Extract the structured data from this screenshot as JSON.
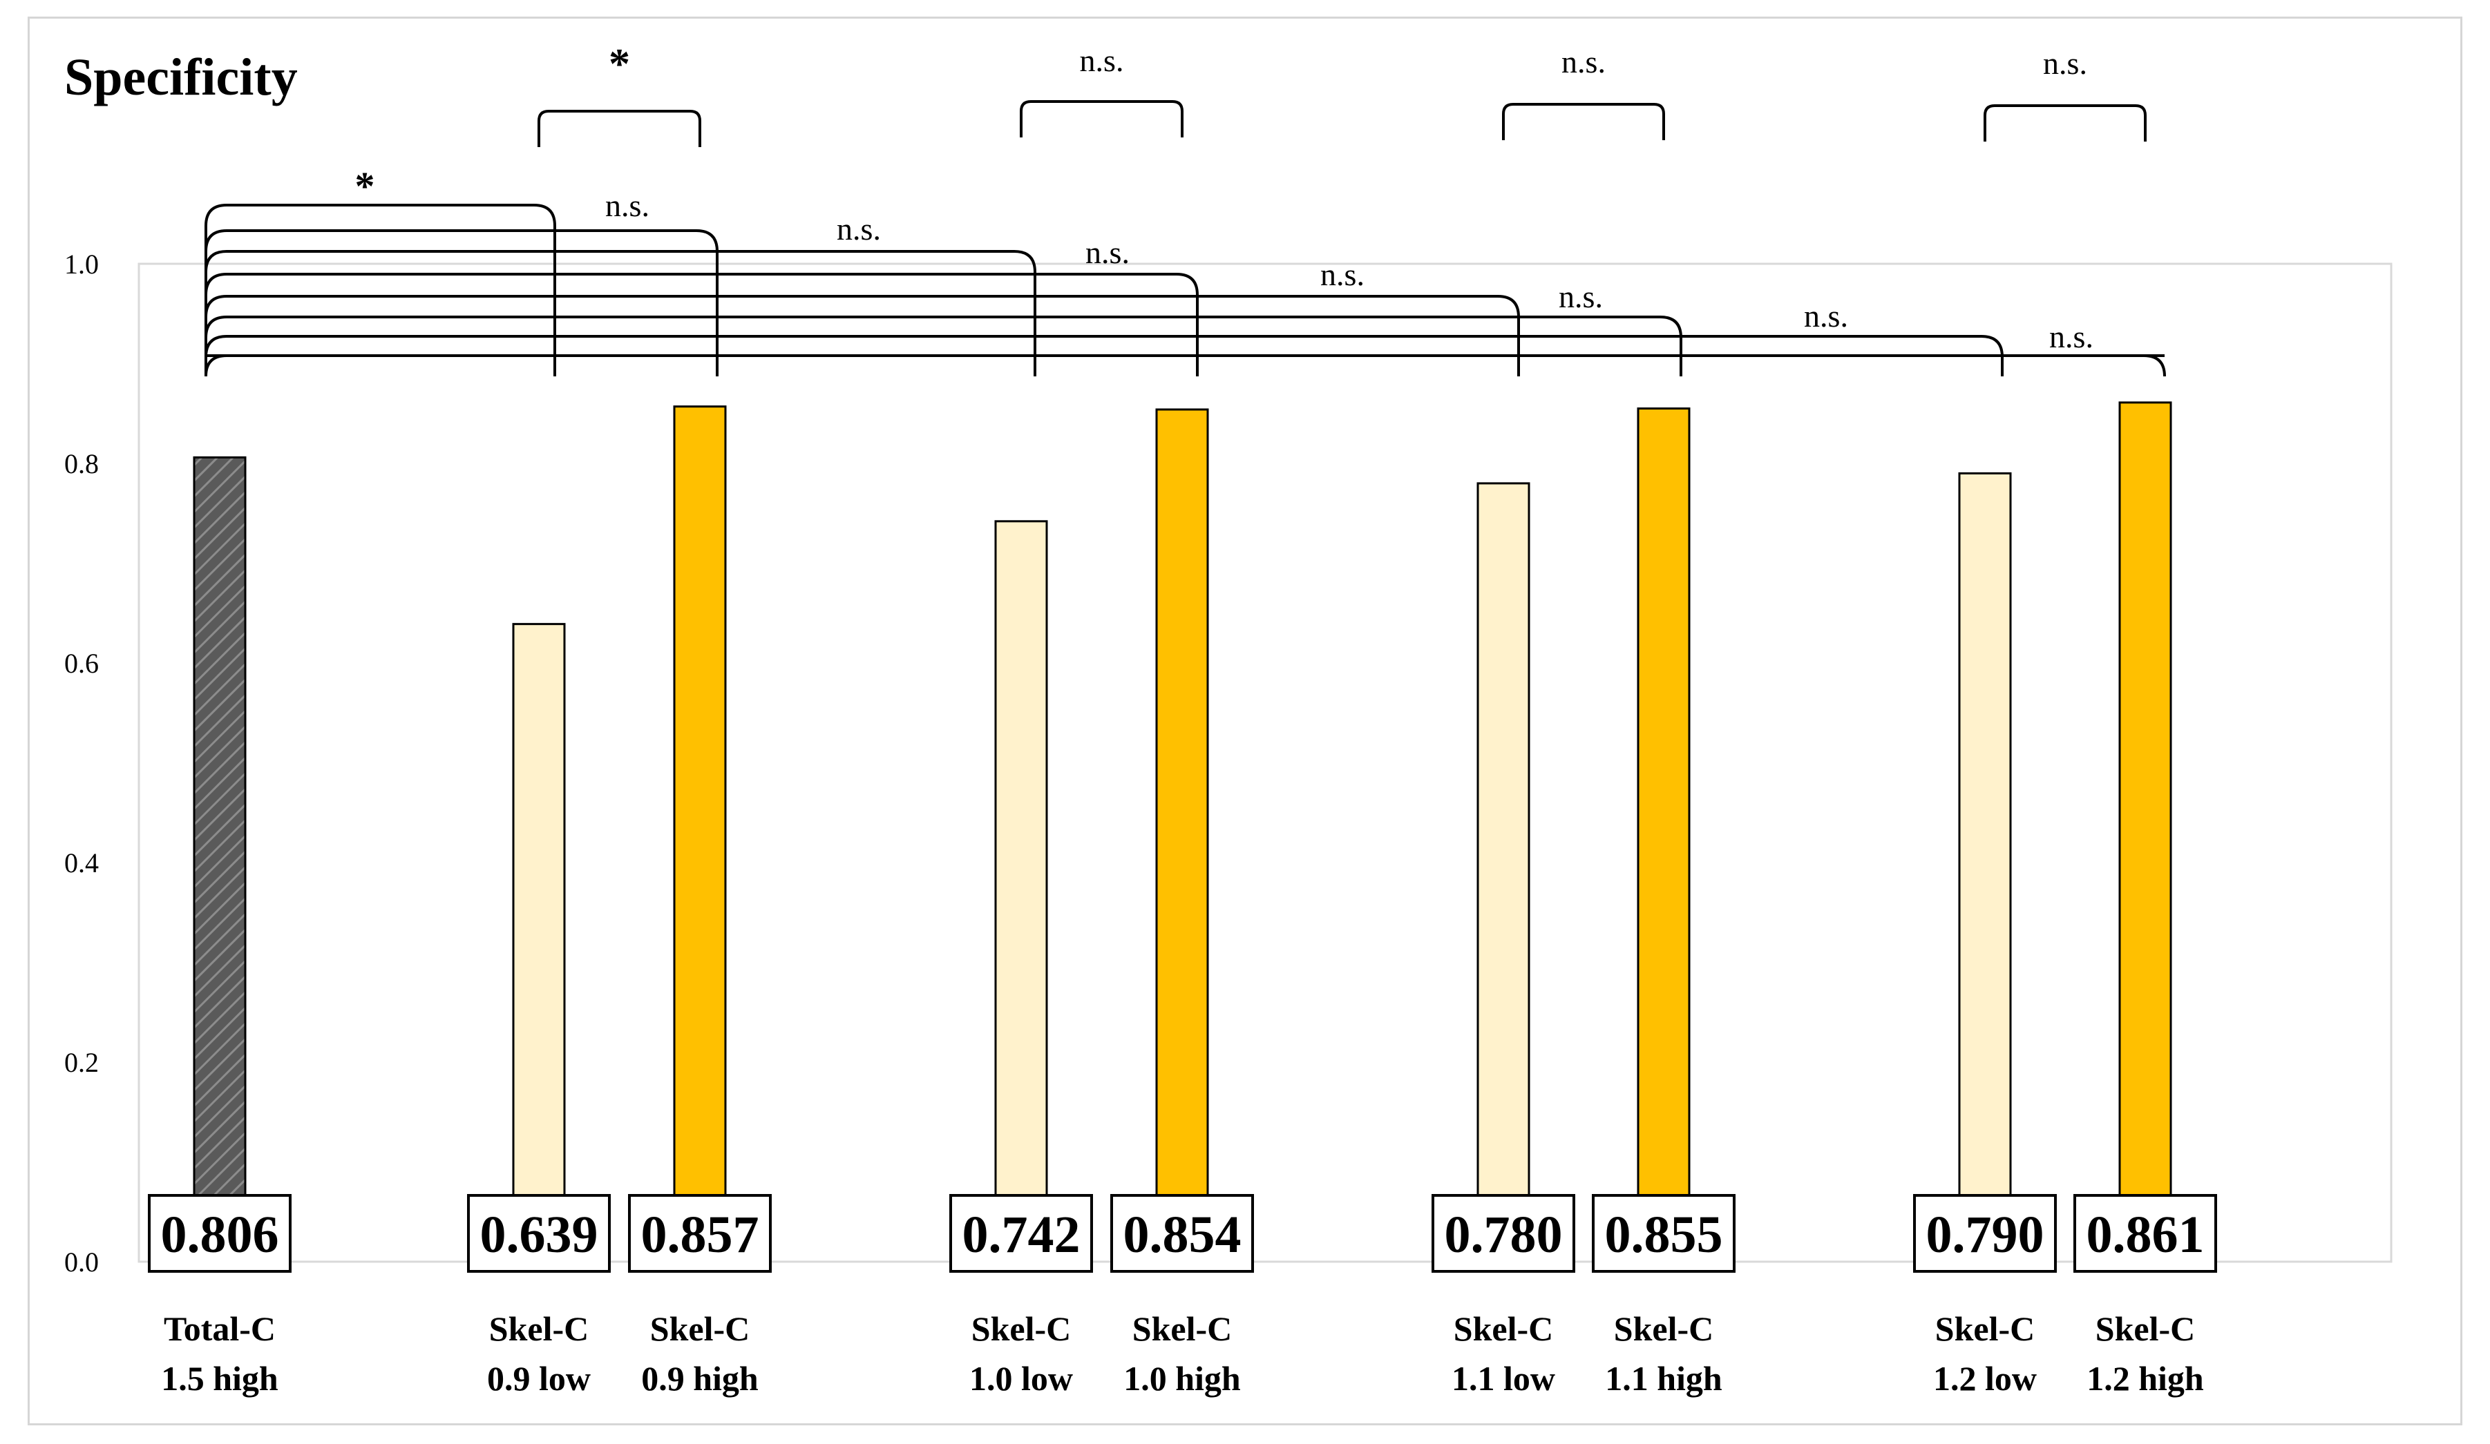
{
  "chart_data": {
    "type": "bar",
    "title": "Specificity",
    "xlabel": "",
    "ylabel": "",
    "ylim": [
      0,
      1.0
    ],
    "yticks": [
      "0.0",
      "0.2",
      "0.4",
      "0.6",
      "0.8",
      "1.0"
    ],
    "grid": false,
    "categories": [
      [
        "Total-C",
        "1.5 high"
      ],
      [
        "Skel-C",
        "0.9 low"
      ],
      [
        "Skel-C",
        "0.9 high"
      ],
      [
        "Skel-C",
        "1.0 low"
      ],
      [
        "Skel-C",
        "1.0 high"
      ],
      [
        "Skel-C",
        "1.1 low"
      ],
      [
        "Skel-C",
        "1.1 high"
      ],
      [
        "Skel-C",
        "1.2 low"
      ],
      [
        "Skel-C",
        "1.2 high"
      ]
    ],
    "values": [
      0.806,
      0.639,
      0.857,
      0.742,
      0.854,
      0.78,
      0.855,
      0.79,
      0.861
    ],
    "value_labels": [
      "0.806",
      "0.639",
      "0.857",
      "0.742",
      "0.854",
      "0.780",
      "0.855",
      "0.790",
      "0.861"
    ],
    "bar_styles": [
      "hatched",
      "light",
      "dark",
      "light",
      "dark",
      "light",
      "dark",
      "light",
      "dark"
    ],
    "colors": {
      "hatched_fill": "#5a5a5a",
      "hatch_line": "#8c8c8c",
      "light_fill": "#fff2cc",
      "dark_fill": "#ffc000",
      "outline": "#000000",
      "axis": "#d9d9d9"
    },
    "significance": {
      "vs_total": [
        {
          "compare": [
            0,
            1
          ],
          "label": "*"
        },
        {
          "compare": [
            0,
            2
          ],
          "label": "n.s."
        },
        {
          "compare": [
            0,
            3
          ],
          "label": "n.s."
        },
        {
          "compare": [
            0,
            4
          ],
          "label": "n.s."
        },
        {
          "compare": [
            0,
            5
          ],
          "label": "n.s."
        },
        {
          "compare": [
            0,
            6
          ],
          "label": "n.s."
        },
        {
          "compare": [
            0,
            7
          ],
          "label": "n.s."
        },
        {
          "compare": [
            0,
            8
          ],
          "label": "n.s."
        }
      ],
      "pairs": [
        {
          "compare": [
            1,
            2
          ],
          "label": "*"
        },
        {
          "compare": [
            3,
            4
          ],
          "label": "n.s."
        },
        {
          "compare": [
            5,
            6
          ],
          "label": "n.s."
        },
        {
          "compare": [
            7,
            8
          ],
          "label": "n.s."
        }
      ]
    }
  }
}
